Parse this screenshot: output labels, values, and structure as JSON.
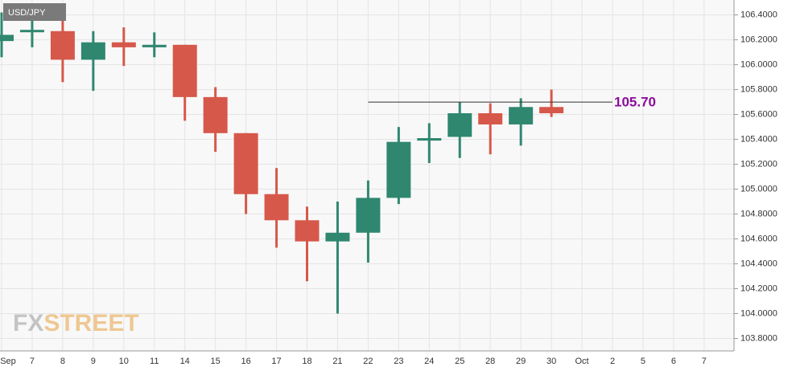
{
  "chart_data": {
    "type": "candlestick",
    "title": "USD/JPY",
    "watermark": [
      "FX",
      "STREET"
    ],
    "categories": [
      "Sep",
      "7",
      "8",
      "9",
      "10",
      "11",
      "14",
      "15",
      "16",
      "17",
      "18",
      "21",
      "22",
      "23",
      "24",
      "25",
      "28",
      "29",
      "30",
      "Oct",
      "2",
      "5",
      "6",
      "7"
    ],
    "open": [
      106.19,
      106.28,
      106.27,
      106.04,
      106.18,
      106.14,
      106.16,
      105.74,
      105.45,
      104.96,
      104.75,
      104.58,
      104.65,
      104.93,
      105.39,
      105.42,
      105.61,
      105.52,
      105.66,
      null,
      null,
      null,
      null,
      null
    ],
    "high": [
      106.42,
      106.39,
      106.37,
      106.27,
      106.3,
      106.26,
      106.16,
      105.82,
      105.45,
      105.17,
      104.86,
      104.9,
      105.07,
      105.5,
      105.53,
      105.7,
      105.69,
      105.73,
      105.8,
      null,
      null,
      null,
      null,
      null
    ],
    "low": [
      106.06,
      106.14,
      105.86,
      105.79,
      105.99,
      106.06,
      105.55,
      105.3,
      104.8,
      104.53,
      104.26,
      104.0,
      104.41,
      104.88,
      105.21,
      105.25,
      105.28,
      105.35,
      105.58,
      null,
      null,
      null,
      null,
      null
    ],
    "close": [
      106.24,
      106.28,
      106.04,
      106.18,
      106.14,
      106.16,
      105.74,
      105.45,
      104.96,
      104.75,
      104.58,
      104.65,
      104.93,
      105.38,
      105.41,
      105.61,
      105.52,
      105.66,
      105.61,
      null,
      null,
      null,
      null,
      null
    ],
    "up_color": "#2f8770",
    "down_color": "#d6584a",
    "ylim": [
      103.7,
      106.52
    ],
    "yticks": [
      {
        "value": 103.8,
        "label": "103.8000"
      },
      {
        "value": 104.0,
        "label": "104.0000"
      },
      {
        "value": 104.2,
        "label": "104.2000"
      },
      {
        "value": 104.4,
        "label": "104.4000"
      },
      {
        "value": 104.6,
        "label": "104.6000"
      },
      {
        "value": 104.8,
        "label": "104.8000"
      },
      {
        "value": 105.0,
        "label": "105.0000"
      },
      {
        "value": 105.2,
        "label": "105.2000"
      },
      {
        "value": 105.4,
        "label": "105.4000"
      },
      {
        "value": 105.6,
        "label": "105.6000"
      },
      {
        "value": 105.8,
        "label": "105.8000"
      },
      {
        "value": 106.0,
        "label": "106.0000"
      },
      {
        "value": 106.2,
        "label": "106.2000"
      },
      {
        "value": 106.4,
        "label": "106.4000"
      }
    ],
    "grid": true,
    "annotation": {
      "value": 105.7,
      "label": "105.70",
      "start": 12,
      "end": 20,
      "color": "#8b0d9c"
    }
  }
}
